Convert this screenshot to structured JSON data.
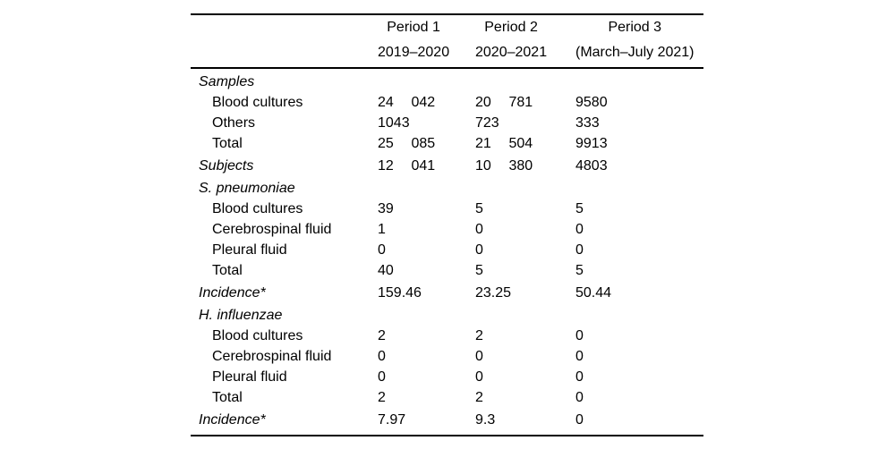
{
  "page": {
    "background_color": "#ffffff",
    "text_color": "#000000",
    "rule_color": "#000000"
  },
  "table": {
    "header": {
      "columns": [
        {
          "line1": "Period 1",
          "line2": "2019–2020"
        },
        {
          "line1": "Period 2",
          "line2": "2020–2021"
        },
        {
          "line1": "Period 3",
          "line2": "(March–July 2021)"
        }
      ]
    },
    "rows": [
      {
        "label": "Samples",
        "section": true,
        "group_start": false,
        "values": [
          null,
          null,
          null
        ]
      },
      {
        "label": "Blood cultures",
        "section": false,
        "group_start": false,
        "values": [
          [
            "24",
            "042"
          ],
          [
            "20",
            "781"
          ],
          "9580"
        ]
      },
      {
        "label": "Others",
        "section": false,
        "group_start": false,
        "values": [
          "1043",
          "723",
          "333"
        ]
      },
      {
        "label": "Total",
        "section": false,
        "group_start": false,
        "values": [
          [
            "25",
            "085"
          ],
          [
            "21",
            "504"
          ],
          "9913"
        ]
      },
      {
        "label": "Subjects",
        "section": true,
        "group_start": true,
        "values": [
          [
            "12",
            "041"
          ],
          [
            "10",
            "380"
          ],
          "4803"
        ]
      },
      {
        "label": "S. pneumoniae",
        "section": true,
        "group_start": true,
        "values": [
          null,
          null,
          null
        ]
      },
      {
        "label": "Blood cultures",
        "section": false,
        "group_start": false,
        "values": [
          "39",
          "5",
          "5"
        ]
      },
      {
        "label": "Cerebrospinal fluid",
        "section": false,
        "group_start": false,
        "values": [
          "1",
          "0",
          "0"
        ]
      },
      {
        "label": "Pleural fluid",
        "section": false,
        "group_start": false,
        "values": [
          "0",
          "0",
          "0"
        ]
      },
      {
        "label": "Total",
        "section": false,
        "group_start": false,
        "values": [
          "40",
          "5",
          "5"
        ]
      },
      {
        "label": "Incidence*",
        "section": true,
        "group_start": true,
        "values": [
          "159.46",
          "23.25",
          "50.44"
        ]
      },
      {
        "label": "H. influenzae",
        "section": true,
        "group_start": true,
        "values": [
          null,
          null,
          null
        ]
      },
      {
        "label": "Blood cultures",
        "section": false,
        "group_start": false,
        "values": [
          "2",
          "2",
          "0"
        ]
      },
      {
        "label": "Cerebrospinal fluid",
        "section": false,
        "group_start": false,
        "values": [
          "0",
          "0",
          "0"
        ]
      },
      {
        "label": "Pleural fluid",
        "section": false,
        "group_start": false,
        "values": [
          "0",
          "0",
          "0"
        ]
      },
      {
        "label": "Total",
        "section": false,
        "group_start": false,
        "values": [
          "2",
          "2",
          "0"
        ]
      },
      {
        "label": "Incidence*",
        "section": true,
        "group_start": true,
        "values": [
          "7.97",
          "9.3",
          "0"
        ]
      }
    ]
  }
}
